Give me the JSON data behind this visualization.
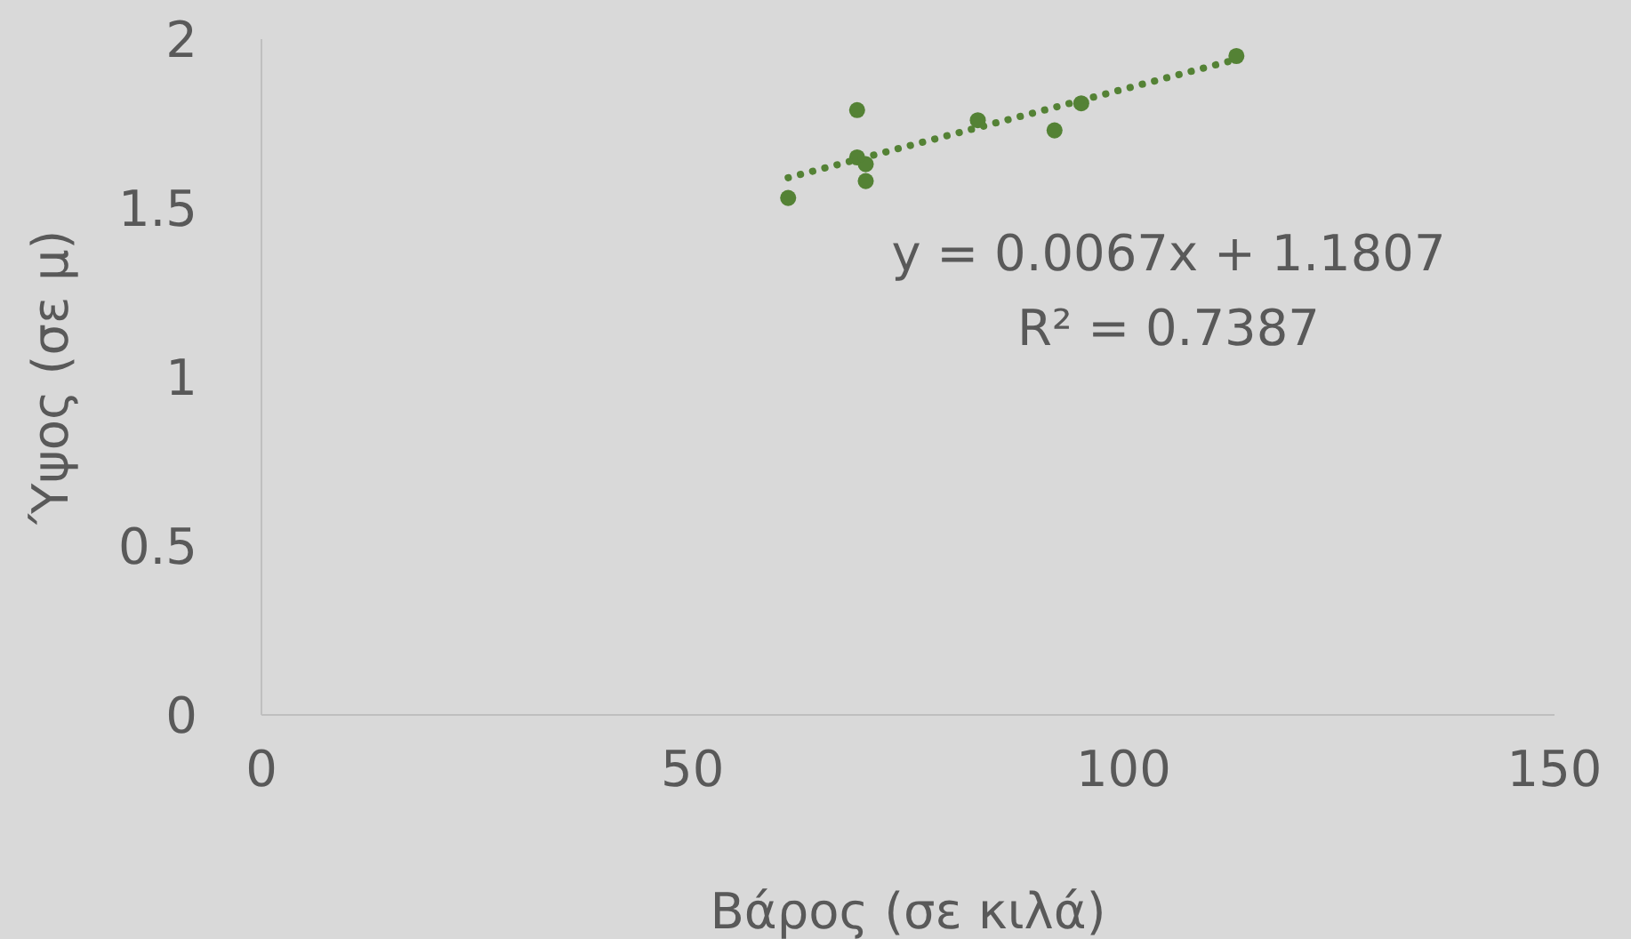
{
  "chart_data": {
    "type": "scatter",
    "xlabel": "Βάρος (σε κιλά)",
    "ylabel": "Ύψος (σε μ)",
    "xlim": [
      0,
      150
    ],
    "xticks": [
      0,
      50,
      100,
      150
    ],
    "ylim": [
      0,
      2
    ],
    "yticks": [
      0,
      0.5,
      1,
      1.5,
      2
    ],
    "marker": "circle",
    "annotations": [
      "y = 0.0067x + 1.1807",
      "R² = 0.7387"
    ],
    "series": [
      {
        "color": "#548235",
        "x": [
          61.1,
          69.1,
          69.1,
          70.1,
          70.1,
          83.1,
          92,
          95.1,
          113.1
        ],
        "values": [
          1.53,
          1.79,
          1.65,
          1.63,
          1.58,
          1.76,
          1.73,
          1.81,
          1.95
        ]
      },
      {
        "type": "line",
        "color": "#548235",
        "line_style": "dotted",
        "marker": "none",
        "x": [
          61.1,
          113.1
        ],
        "values": [
          1.59,
          1.94
        ]
      }
    ]
  }
}
